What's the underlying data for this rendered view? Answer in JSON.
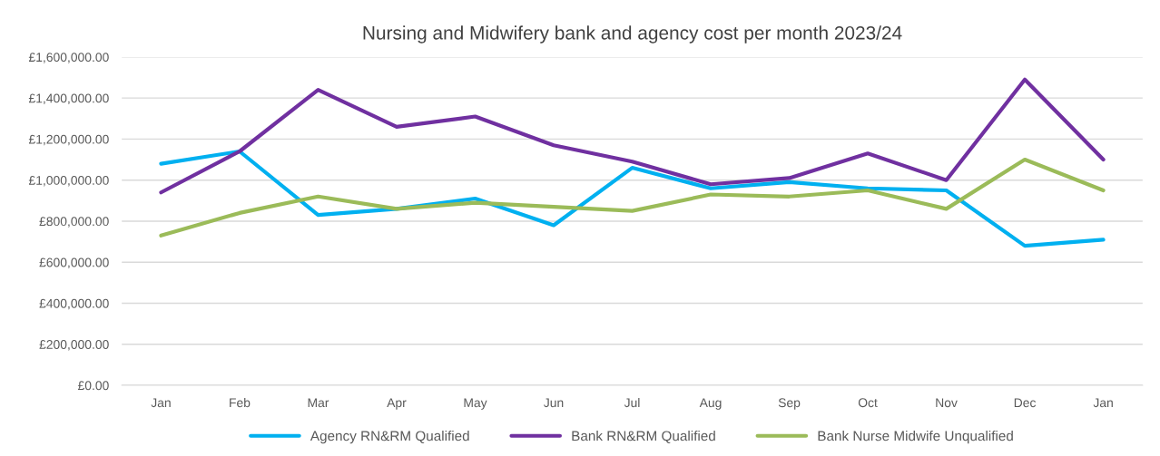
{
  "chart_data": {
    "type": "line",
    "title": "Nursing and Midwifery bank and agency cost per month 2023/24",
    "categories": [
      "Jan",
      "Feb",
      "Mar",
      "Apr",
      "May",
      "Jun",
      "Jul",
      "Aug",
      "Sep",
      "Oct",
      "Nov",
      "Dec",
      "Jan"
    ],
    "series": [
      {
        "name": "Agency RN&RM Qualified",
        "color": "#00b0f0",
        "values": [
          1080000,
          1140000,
          830000,
          860000,
          910000,
          780000,
          1060000,
          960000,
          990000,
          960000,
          950000,
          680000,
          710000
        ]
      },
      {
        "name": "Bank RN&RM Qualified",
        "color": "#7030a0",
        "values": [
          940000,
          1140000,
          1440000,
          1260000,
          1310000,
          1170000,
          1090000,
          980000,
          1010000,
          1130000,
          1000000,
          1490000,
          1100000
        ]
      },
      {
        "name": "Bank Nurse Midwife Unqualified",
        "color": "#9bbb59",
        "values": [
          730000,
          840000,
          920000,
          860000,
          890000,
          870000,
          850000,
          930000,
          920000,
          950000,
          860000,
          1100000,
          950000
        ]
      }
    ],
    "ylim": [
      0,
      1600000
    ],
    "yticks": [
      {
        "value": 0,
        "label": "£0.00"
      },
      {
        "value": 200000,
        "label": "£200,000.00"
      },
      {
        "value": 400000,
        "label": "£400,000.00"
      },
      {
        "value": 600000,
        "label": "£600,000.00"
      },
      {
        "value": 800000,
        "label": "£800,000.00"
      },
      {
        "value": 1000000,
        "label": "£1,000,000.00"
      },
      {
        "value": 1200000,
        "label": "£1,200,000.00"
      },
      {
        "value": 1400000,
        "label": "£1,400,000.00"
      },
      {
        "value": 1600000,
        "label": "£1,600,000.00"
      }
    ],
    "grid": "y",
    "legend": "bottom",
    "marker": "none",
    "line_style": "solid"
  }
}
